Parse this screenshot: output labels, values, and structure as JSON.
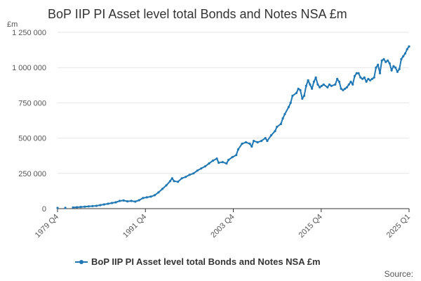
{
  "chart_data": {
    "type": "line",
    "title": "BoP IIP PI Asset level total Bonds and Notes NSA £m",
    "ylabel_unit": "£m",
    "ylim": [
      0,
      1250000
    ],
    "y_ticks": [
      {
        "value": 0,
        "label": "0"
      },
      {
        "value": 250000,
        "label": "250 000"
      },
      {
        "value": 500000,
        "label": "500 000"
      },
      {
        "value": 750000,
        "label": "750 000"
      },
      {
        "value": 1000000,
        "label": "1 000 000"
      },
      {
        "value": 1250000,
        "label": "1 250 000"
      }
    ],
    "x_ticks": [
      "1979 Q4",
      "1991 Q4",
      "2003 Q4",
      "2015 Q4",
      "2025 Q1"
    ],
    "x_start_year": 1979.75,
    "x_end_year": 2025.0,
    "series": [
      {
        "name": "BoP IIP PI Asset level total Bonds and Notes NSA £m",
        "color": "#1f77b4",
        "points": [
          [
            1979.75,
            5000
          ],
          [
            1980.75,
            6000
          ],
          [
            1981.75,
            8000
          ],
          [
            1982.25,
            10000
          ],
          [
            1982.75,
            12000
          ],
          [
            1983.25,
            14000
          ],
          [
            1983.75,
            16000
          ],
          [
            1984.25,
            18000
          ],
          [
            1984.75,
            20000
          ],
          [
            1985.25,
            25000
          ],
          [
            1985.75,
            30000
          ],
          [
            1986.25,
            35000
          ],
          [
            1986.75,
            40000
          ],
          [
            1987.25,
            45000
          ],
          [
            1987.75,
            55000
          ],
          [
            1988.25,
            58000
          ],
          [
            1988.75,
            52000
          ],
          [
            1989.25,
            55000
          ],
          [
            1989.75,
            50000
          ],
          [
            1990.25,
            60000
          ],
          [
            1990.75,
            75000
          ],
          [
            1991.25,
            80000
          ],
          [
            1991.75,
            85000
          ],
          [
            1992.25,
            95000
          ],
          [
            1992.75,
            115000
          ],
          [
            1993.25,
            140000
          ],
          [
            1993.75,
            165000
          ],
          [
            1994.25,
            195000
          ],
          [
            1994.5,
            215000
          ],
          [
            1994.75,
            195000
          ],
          [
            1995.25,
            190000
          ],
          [
            1995.75,
            215000
          ],
          [
            1996.25,
            225000
          ],
          [
            1996.75,
            240000
          ],
          [
            1997.25,
            250000
          ],
          [
            1997.75,
            270000
          ],
          [
            1998.25,
            285000
          ],
          [
            1998.75,
            300000
          ],
          [
            1999.25,
            320000
          ],
          [
            1999.75,
            340000
          ],
          [
            2000.25,
            355000
          ],
          [
            2000.5,
            325000
          ],
          [
            2001.0,
            330000
          ],
          [
            2001.5,
            320000
          ],
          [
            2001.75,
            345000
          ],
          [
            2002.25,
            365000
          ],
          [
            2002.75,
            380000
          ],
          [
            2003.0,
            420000
          ],
          [
            2003.5,
            460000
          ],
          [
            2004.0,
            470000
          ],
          [
            2004.5,
            460000
          ],
          [
            2004.75,
            440000
          ],
          [
            2005.0,
            480000
          ],
          [
            2005.5,
            470000
          ],
          [
            2006.0,
            480000
          ],
          [
            2006.5,
            500000
          ],
          [
            2006.75,
            480000
          ],
          [
            2007.25,
            520000
          ],
          [
            2007.75,
            550000
          ],
          [
            2008.0,
            580000
          ],
          [
            2008.5,
            600000
          ],
          [
            2008.75,
            640000
          ],
          [
            2009.0,
            670000
          ],
          [
            2009.5,
            720000
          ],
          [
            2009.75,
            750000
          ],
          [
            2010.0,
            800000
          ],
          [
            2010.5,
            820000
          ],
          [
            2010.75,
            850000
          ],
          [
            2011.0,
            840000
          ],
          [
            2011.25,
            780000
          ],
          [
            2011.5,
            800000
          ],
          [
            2011.75,
            870000
          ],
          [
            2012.0,
            910000
          ],
          [
            2012.25,
            880000
          ],
          [
            2012.5,
            850000
          ],
          [
            2012.75,
            900000
          ],
          [
            2013.0,
            930000
          ],
          [
            2013.25,
            880000
          ],
          [
            2013.5,
            860000
          ],
          [
            2013.75,
            870000
          ],
          [
            2014.0,
            880000
          ],
          [
            2014.5,
            860000
          ],
          [
            2014.75,
            880000
          ],
          [
            2015.0,
            870000
          ],
          [
            2015.5,
            880000
          ],
          [
            2015.75,
            920000
          ],
          [
            2016.0,
            900000
          ],
          [
            2016.25,
            850000
          ],
          [
            2016.5,
            840000
          ],
          [
            2016.75,
            850000
          ],
          [
            2017.0,
            860000
          ],
          [
            2017.25,
            880000
          ],
          [
            2017.5,
            900000
          ],
          [
            2017.75,
            880000
          ],
          [
            2018.0,
            940000
          ],
          [
            2018.25,
            960000
          ],
          [
            2018.5,
            960000
          ],
          [
            2018.75,
            930000
          ],
          [
            2019.0,
            920000
          ],
          [
            2019.25,
            930000
          ],
          [
            2019.5,
            900000
          ],
          [
            2019.75,
            920000
          ],
          [
            2020.0,
            910000
          ],
          [
            2020.25,
            920000
          ],
          [
            2020.5,
            930000
          ],
          [
            2020.75,
            1000000
          ],
          [
            2021.0,
            1020000
          ],
          [
            2021.25,
            960000
          ],
          [
            2021.5,
            1050000
          ],
          [
            2021.75,
            1060000
          ],
          [
            2022.0,
            1040000
          ],
          [
            2022.25,
            1050000
          ],
          [
            2022.5,
            1030000
          ],
          [
            2022.75,
            980000
          ],
          [
            2023.0,
            1010000
          ],
          [
            2023.25,
            1000000
          ],
          [
            2023.5,
            970000
          ],
          [
            2023.75,
            990000
          ],
          [
            2024.0,
            1060000
          ],
          [
            2024.25,
            1080000
          ],
          [
            2024.5,
            1100000
          ],
          [
            2024.75,
            1130000
          ],
          [
            2025.0,
            1150000
          ]
        ]
      }
    ],
    "legend": "bottom-center",
    "grid": true
  },
  "footer": {
    "source_label": "Source:"
  },
  "colors": {
    "series": "#1f77b4",
    "grid": "#e6e6e6",
    "axis": "#333333"
  }
}
